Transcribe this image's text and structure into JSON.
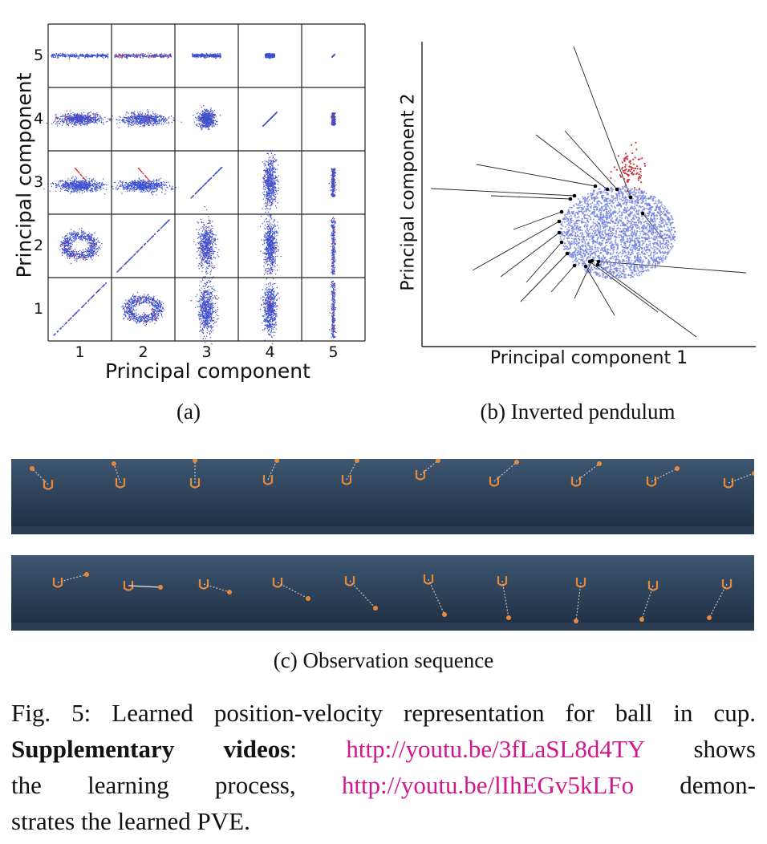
{
  "figure": {
    "panel_a": {
      "subcaption": "(a)",
      "xlabel": "Principal component",
      "ylabel": "Principal component",
      "x_ticks": [
        "1",
        "2",
        "3",
        "4",
        "5"
      ],
      "y_ticks": [
        "5",
        "4",
        "3",
        "2",
        "1"
      ]
    },
    "panel_b": {
      "subcaption": "(b) Inverted pendulum",
      "xlabel": "Principal component 1",
      "ylabel": "Principal component 2"
    },
    "panel_c": {
      "subcaption": "(c) Observation sequence"
    }
  },
  "caption": {
    "lead": "Fig. 5: Learned position-velocity representation for ball in cup.",
    "bold_label": "Supplementary videos",
    "colon": ":",
    "link1": "http://youtu.be/3fLaSL8d4TY",
    "after_link1": "shows",
    "line3_start": "the learning process,",
    "link2": "http://youtu.be/lIhEGv5kLFo",
    "after_link2": "demon-",
    "line4": "strates the learned PVE."
  },
  "colors": {
    "points_blue": "#3b4fd0",
    "points_red": "#d1343f",
    "link": "#d0178c",
    "strip_top": "#3e5772",
    "strip_bottom": "#1d2d40",
    "cup": "#e7893a"
  }
}
